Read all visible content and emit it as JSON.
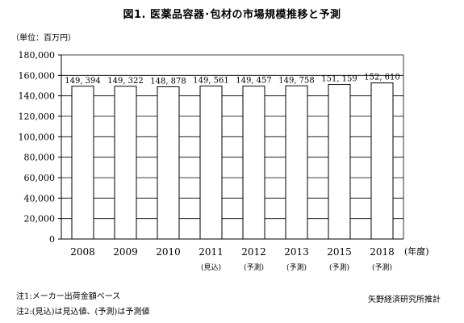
{
  "title": "図1. 医薬品容器･包材の市場規模推移と予測",
  "unit_label": "（単位：百万円）",
  "x_unit": "(年度)",
  "footnotes": {
    "note1": "注1:メーカー出荷金額ベース",
    "note2": "注2:(見込)は見込値、(予測)は予測値",
    "source": "矢野経済研究所推計"
  },
  "chart_data": {
    "type": "bar",
    "title": "図1. 医薬品容器･包材の市場規模推移と予測",
    "xlabel": "(年度)",
    "ylabel": "（単位：百万円）",
    "ylim": [
      0,
      180000
    ],
    "yticks": [
      "0",
      "20,000",
      "40,000",
      "60,000",
      "80,000",
      "100,000",
      "120,000",
      "140,000",
      "160,000",
      "180,000"
    ],
    "grid": true,
    "categories": [
      "2008",
      "2009",
      "2010",
      "2011",
      "2012",
      "2013",
      "2015",
      "2018"
    ],
    "category_notes": [
      "",
      "",
      "",
      "(見込)",
      "(予測)",
      "(予測)",
      "(予測)",
      "(予測)"
    ],
    "values": [
      149394,
      149322,
      148878,
      149561,
      149457,
      149758,
      151159,
      152610
    ],
    "value_labels": [
      "149, 394",
      "149, 322",
      "148, 878",
      "149, 561",
      "149, 457",
      "149, 758",
      "151, 159",
      "152, 610"
    ],
    "colors": {
      "bar_fill": "#ffffff",
      "bar_stroke": "#000000",
      "grid": "#000000"
    }
  }
}
